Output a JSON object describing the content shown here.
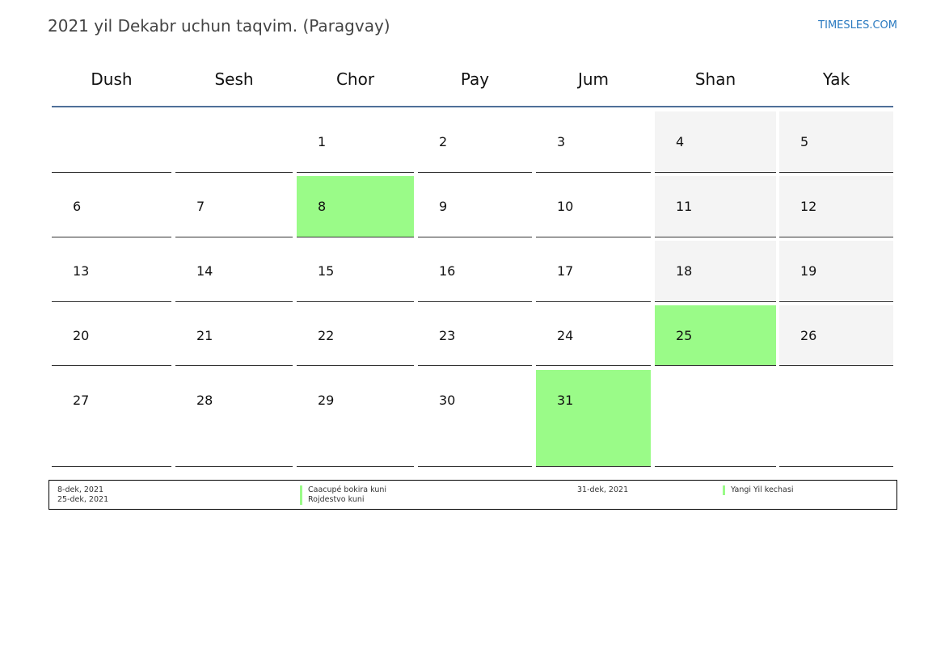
{
  "header": {
    "title": "2021 yil Dekabr uchun taqvim. (Paragvay)",
    "brand": "TIMESLES.COM"
  },
  "colors": {
    "holiday": "#9afb88",
    "weekend": "#f4f4f4",
    "accent_line": "#4f6f99"
  },
  "weekdays": [
    "Dush",
    "Sesh",
    "Chor",
    "Pay",
    "Jum",
    "Shan",
    "Yak"
  ],
  "weeks": [
    [
      "",
      "",
      "1",
      "2",
      "3",
      "4",
      "5"
    ],
    [
      "6",
      "7",
      "8",
      "9",
      "10",
      "11",
      "12"
    ],
    [
      "13",
      "14",
      "15",
      "16",
      "17",
      "18",
      "19"
    ],
    [
      "20",
      "21",
      "22",
      "23",
      "24",
      "25",
      "26"
    ],
    [
      "27",
      "28",
      "29",
      "30",
      "31",
      "",
      ""
    ]
  ],
  "holidays_days": [
    "8",
    "25",
    "31"
  ],
  "legend": [
    {
      "date": "8-dek, 2021",
      "name": "Caacupé bokira kuni"
    },
    {
      "date": "25-dek, 2021",
      "name": "Rojdestvo kuni"
    },
    {
      "date": "31-dek, 2021",
      "name": "Yangi Yil kechasi"
    }
  ]
}
